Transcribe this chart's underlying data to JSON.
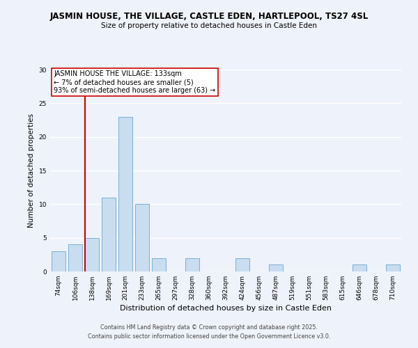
{
  "title": "JASMIN HOUSE, THE VILLAGE, CASTLE EDEN, HARTLEPOOL, TS27 4SL",
  "subtitle": "Size of property relative to detached houses in Castle Eden",
  "xlabel": "Distribution of detached houses by size in Castle Eden",
  "ylabel": "Number of detached properties",
  "bin_labels": [
    "74sqm",
    "106sqm",
    "138sqm",
    "169sqm",
    "201sqm",
    "233sqm",
    "265sqm",
    "297sqm",
    "328sqm",
    "360sqm",
    "392sqm",
    "424sqm",
    "456sqm",
    "487sqm",
    "519sqm",
    "551sqm",
    "583sqm",
    "615sqm",
    "646sqm",
    "678sqm",
    "710sqm"
  ],
  "bar_heights": [
    3,
    4,
    5,
    11,
    23,
    10,
    2,
    0,
    2,
    0,
    0,
    2,
    0,
    1,
    0,
    0,
    0,
    0,
    1,
    0,
    1
  ],
  "bar_color": "#c8ddf0",
  "bar_edge_color": "#7aafd4",
  "vline_color": "#cc0000",
  "annotation_title": "JASMIN HOUSE THE VILLAGE: 133sqm",
  "annotation_line1": "← 7% of detached houses are smaller (5)",
  "annotation_line2": "93% of semi-detached houses are larger (63) →",
  "annotation_box_color": "white",
  "annotation_box_edge": "#cc0000",
  "ylim": [
    0,
    30
  ],
  "yticks": [
    0,
    5,
    10,
    15,
    20,
    25,
    30
  ],
  "footer1": "Contains HM Land Registry data © Crown copyright and database right 2025.",
  "footer2": "Contains public sector information licensed under the Open Government Licence v3.0.",
  "background_color": "#eef2fa"
}
